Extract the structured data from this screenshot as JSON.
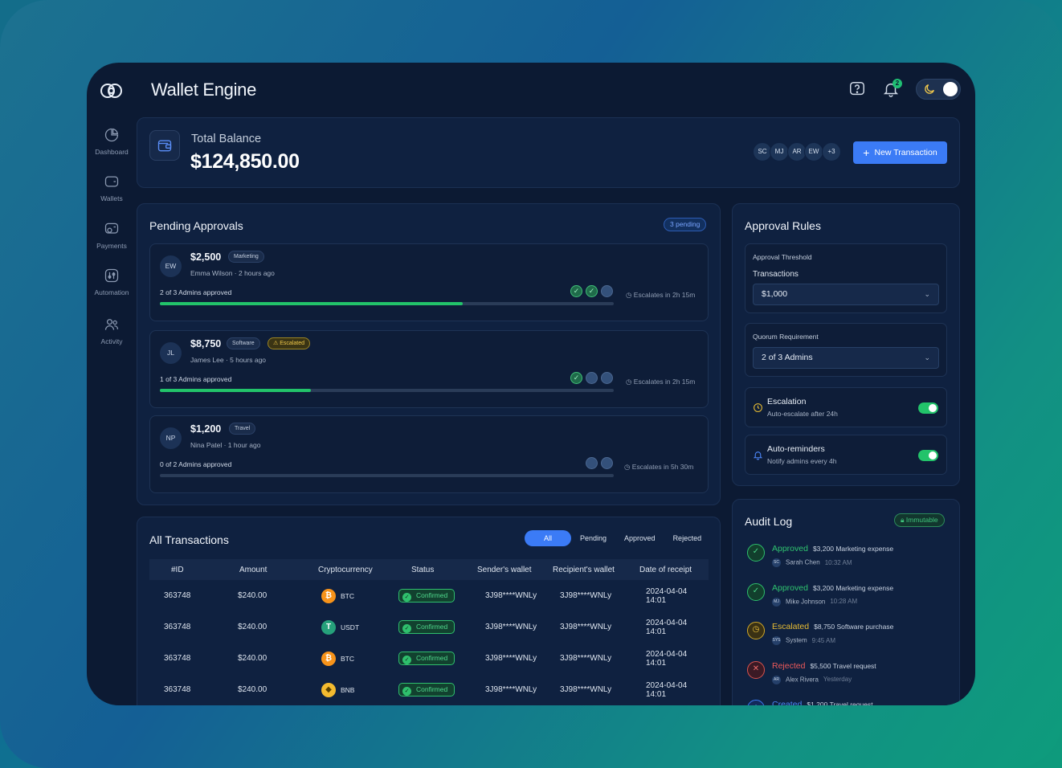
{
  "app": {
    "title": "Wallet Engine",
    "notification_count": "2"
  },
  "sidebar": {
    "items": [
      {
        "label": "Dashboard",
        "icon": "chart-pie-icon"
      },
      {
        "label": "Wallets",
        "icon": "wallet-icon"
      },
      {
        "label": "Payments",
        "icon": "payments-icon"
      },
      {
        "label": "Automation",
        "icon": "automation-icon"
      },
      {
        "label": "Activity",
        "icon": "users-icon"
      }
    ]
  },
  "balance": {
    "label": "Total Balance",
    "value": "$124,850.00",
    "avatars": [
      "SC",
      "MJ",
      "AR",
      "EW",
      "+3"
    ],
    "new_transaction_label": "New Transaction"
  },
  "pending": {
    "title": "Pending Approvals",
    "count_label": "3 pending",
    "items": [
      {
        "initials": "EW",
        "amount": "$2,500",
        "tag": "Marketing",
        "escalated_tag": "",
        "meta": "Emma Wilson · 2 hours ago",
        "approved": "2 of 3 Admins approved",
        "progress": 0.667,
        "escalates": "Escalates in 2h 15m",
        "approvals_done": 2,
        "approvals_total": 3
      },
      {
        "initials": "JL",
        "amount": "$8,750",
        "tag": "Software",
        "escalated_tag": "Escalated",
        "meta": "James Lee · 5 hours ago",
        "approved": "1 of 3 Admins approved",
        "progress": 0.333,
        "escalates": "Escalates in 2h 15m",
        "approvals_done": 1,
        "approvals_total": 3
      },
      {
        "initials": "NP",
        "amount": "$1,200",
        "tag": "Travel",
        "escalated_tag": "",
        "meta": "Nina Patel · 1 hour ago",
        "approved": "0 of 2 Admins approved",
        "progress": 0,
        "escalates": "Escalates in 5h 30m",
        "approvals_done": 0,
        "approvals_total": 2
      }
    ]
  },
  "rules": {
    "title": "Approval Rules",
    "threshold_label": "Approval Threshold",
    "threshold_sub": "Transactions",
    "threshold_value": "$1,000",
    "quorum_label": "Quorum Requirement",
    "quorum_value": "2 of 3 Admins",
    "escalation_name": "Escalation",
    "escalation_desc": "Auto-escalate after 24h",
    "reminders_name": "Auto-reminders",
    "reminders_desc": "Notify admins every 4h"
  },
  "transactions": {
    "title": "All Transactions",
    "filters": [
      "All",
      "Pending",
      "Approved",
      "Rejected"
    ],
    "columns": [
      "#ID",
      "Amount",
      "Cryptocurrency",
      "Status",
      "Sender's wallet",
      "Recipient's wallet",
      "Date of receipt"
    ],
    "rows": [
      {
        "id": "363748",
        "amount": "$240.00",
        "coin": "BTC",
        "coin_glyph": "₿",
        "coin_class": "coin-btc",
        "status": "Confirmed",
        "sender": "3J98****WNLy",
        "recipient": "3J98****WNLy",
        "date": "2024-04-04",
        "time": "14:01"
      },
      {
        "id": "363748",
        "amount": "$240.00",
        "coin": "USDT",
        "coin_glyph": "T",
        "coin_class": "coin-usdt",
        "status": "Confirmed",
        "sender": "3J98****WNLy",
        "recipient": "3J98****WNLy",
        "date": "2024-04-04",
        "time": "14:01"
      },
      {
        "id": "363748",
        "amount": "$240.00",
        "coin": "BTC",
        "coin_glyph": "₿",
        "coin_class": "coin-btc",
        "status": "Confirmed",
        "sender": "3J98****WNLy",
        "recipient": "3J98****WNLy",
        "date": "2024-04-04",
        "time": "14:01"
      },
      {
        "id": "363748",
        "amount": "$240.00",
        "coin": "BNB",
        "coin_glyph": "◆",
        "coin_class": "coin-bnb",
        "status": "Confirmed",
        "sender": "3J98****WNLy",
        "recipient": "3J98****WNLy",
        "date": "2024-04-04",
        "time": "14:01"
      }
    ]
  },
  "audit": {
    "title": "Audit Log",
    "badge": "Immutable",
    "items": [
      {
        "status": "Approved",
        "kind": "ok",
        "desc": "$3,200 Marketing expense",
        "initials": "SC",
        "user": "Sarah Chen",
        "time": "10:32 AM"
      },
      {
        "status": "Approved",
        "kind": "ok",
        "desc": "$3,200 Marketing expense",
        "initials": "MJ",
        "user": "Mike Johnson",
        "time": "10:28 AM"
      },
      {
        "status": "Escalated",
        "kind": "warn",
        "desc": "$8,750 Software purchase",
        "initials": "SYS",
        "user": "System",
        "time": "9:45 AM"
      },
      {
        "status": "Rejected",
        "kind": "bad",
        "desc": "$5,500 Travel request",
        "initials": "AR",
        "user": "Alex Rivera",
        "time": "Yesterday"
      },
      {
        "status": "Created",
        "kind": "info",
        "desc": "$1,200 Travel request",
        "initials": "",
        "user": "",
        "time": ""
      }
    ]
  }
}
